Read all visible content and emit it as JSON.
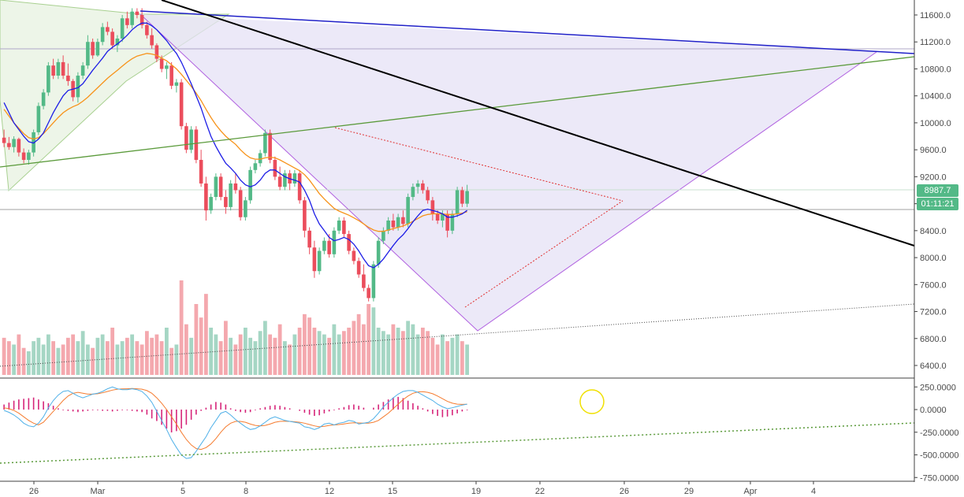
{
  "colors": {
    "up": "#26a69a",
    "up_fill": "#53b987",
    "down": "#ef5350",
    "down_fill": "#eb4d5c",
    "ma_fast": "#1e1ee6",
    "ma_slow": "#f7931a",
    "vol_up": "#a5d6c4",
    "vol_down": "#f4a8ae",
    "macd_line": "#4fb0e8",
    "signal_line": "#f57c30",
    "hist": "#d6267a",
    "triangle_fill": "#e6e1f6",
    "triangle_edge": "#b060e0",
    "green_trend": "#5a9a3a",
    "black_trend": "#000000",
    "blue_trend": "#2020c8",
    "red_dotted": "#e03030",
    "circle": "#f0e000",
    "badge_price": "#53b987",
    "badge_time": "#53b987"
  },
  "price_axis": {
    "ticks": [
      "11600.0",
      "11200.0",
      "10800.0",
      "10400.0",
      "10000.0",
      "9600.0",
      "9200.0",
      "8800.0",
      "8400.0",
      "8000.0",
      "7600.0",
      "7200.0",
      "6800.0",
      "6400.0"
    ]
  },
  "macd_axis": {
    "ticks": [
      "250.0000",
      "0.0000",
      "-250.0000",
      "-500.0000",
      "-750.0000"
    ]
  },
  "date_axis": {
    "labels": [
      "26",
      "Mar",
      "5",
      "8",
      "12",
      "15",
      "19",
      "22",
      "26",
      "29",
      "Apr",
      "4"
    ]
  },
  "current_price": "8987.7",
  "countdown": "01:11:21",
  "chart_data": {
    "type": "candlestick",
    "price_range": [
      6250,
      11850
    ],
    "macd_range": [
      -800,
      300
    ],
    "candles_ohlc": [
      [
        9780,
        9900,
        9640,
        9700
      ],
      [
        9700,
        9790,
        9600,
        9640
      ],
      [
        9640,
        9800,
        9560,
        9760
      ],
      [
        9760,
        9780,
        9500,
        9560
      ],
      [
        9560,
        9620,
        9400,
        9450
      ],
      [
        9450,
        9600,
        9380,
        9560
      ],
      [
        9560,
        9900,
        9500,
        9860
      ],
      [
        9860,
        10300,
        9820,
        10250
      ],
      [
        10250,
        10500,
        10200,
        10450
      ],
      [
        10450,
        10900,
        10400,
        10850
      ],
      [
        10850,
        10950,
        10650,
        10700
      ],
      [
        10700,
        10950,
        10650,
        10900
      ],
      [
        10900,
        11000,
        10650,
        10700
      ],
      [
        10700,
        10880,
        10550,
        10620
      ],
      [
        10620,
        10650,
        10320,
        10380
      ],
      [
        10380,
        10750,
        10300,
        10700
      ],
      [
        10700,
        10900,
        10650,
        10850
      ],
      [
        10850,
        11300,
        10800,
        11200
      ],
      [
        11200,
        11250,
        10950,
        11000
      ],
      [
        11000,
        11250,
        10980,
        11200
      ],
      [
        11200,
        11480,
        11150,
        11420
      ],
      [
        11420,
        11500,
        11300,
        11350
      ],
      [
        11350,
        11400,
        11100,
        11150
      ],
      [
        11150,
        11300,
        11050,
        11250
      ],
      [
        11250,
        11600,
        11200,
        11550
      ],
      [
        11550,
        11650,
        11400,
        11450
      ],
      [
        11450,
        11700,
        11400,
        11650
      ],
      [
        11650,
        11700,
        11550,
        11600
      ],
      [
        11600,
        11700,
        11400,
        11450
      ],
      [
        11450,
        11500,
        11250,
        11300
      ],
      [
        11300,
        11400,
        11100,
        11150
      ],
      [
        11150,
        11180,
        10900,
        10950
      ],
      [
        10950,
        11000,
        10750,
        10800
      ],
      [
        10800,
        10900,
        10650,
        10850
      ],
      [
        10850,
        10900,
        10500,
        10550
      ],
      [
        10550,
        10650,
        10450,
        10600
      ],
      [
        10600,
        10650,
        9900,
        9950
      ],
      [
        9950,
        10000,
        9550,
        9600
      ],
      [
        9600,
        9950,
        9550,
        9900
      ],
      [
        9900,
        9950,
        9400,
        9450
      ],
      [
        9450,
        9600,
        9050,
        9100
      ],
      [
        9100,
        9200,
        8550,
        8700
      ],
      [
        8700,
        8950,
        8650,
        8900
      ],
      [
        8900,
        9250,
        8850,
        9200
      ],
      [
        9200,
        9250,
        8850,
        8900
      ],
      [
        8900,
        9000,
        8650,
        8750
      ],
      [
        8750,
        9150,
        8700,
        9100
      ],
      [
        9100,
        9250,
        8950,
        9000
      ],
      [
        9000,
        9050,
        8550,
        8600
      ],
      [
        8600,
        8900,
        8550,
        8850
      ],
      [
        8850,
        9350,
        8800,
        9300
      ],
      [
        9300,
        9450,
        9250,
        9400
      ],
      [
        9400,
        9600,
        9350,
        9550
      ],
      [
        9550,
        9900,
        9500,
        9850
      ],
      [
        9850,
        9900,
        9400,
        9450
      ],
      [
        9450,
        9500,
        9150,
        9200
      ],
      [
        9200,
        9350,
        9000,
        9050
      ],
      [
        9050,
        9300,
        9000,
        9250
      ],
      [
        9250,
        9300,
        9000,
        9100
      ],
      [
        9100,
        9300,
        9050,
        9250
      ],
      [
        9250,
        9300,
        8800,
        8850
      ],
      [
        8850,
        8900,
        8300,
        8400
      ],
      [
        8400,
        8450,
        8050,
        8150
      ],
      [
        8150,
        8250,
        7700,
        7800
      ],
      [
        7800,
        8150,
        7750,
        8100
      ],
      [
        8100,
        8300,
        8050,
        8250
      ],
      [
        8250,
        8350,
        8000,
        8050
      ],
      [
        8050,
        8450,
        8000,
        8400
      ],
      [
        8400,
        8600,
        8350,
        8550
      ],
      [
        8550,
        8600,
        8300,
        8350
      ],
      [
        8350,
        8400,
        8050,
        8100
      ],
      [
        8100,
        8150,
        7900,
        7950
      ],
      [
        7950,
        8000,
        7700,
        7750
      ],
      [
        7750,
        7900,
        7500,
        7550
      ],
      [
        7550,
        7600,
        7350,
        7400
      ],
      [
        7400,
        7950,
        7350,
        7900
      ],
      [
        7900,
        8300,
        7850,
        8250
      ],
      [
        8250,
        8450,
        8200,
        8400
      ],
      [
        8400,
        8600,
        8350,
        8550
      ],
      [
        8550,
        8650,
        8400,
        8450
      ],
      [
        8450,
        8650,
        8400,
        8600
      ],
      [
        8600,
        8700,
        8450,
        8500
      ],
      [
        8500,
        8950,
        8450,
        8900
      ],
      [
        8900,
        9100,
        8850,
        9050
      ],
      [
        9050,
        9150,
        8950,
        9100
      ],
      [
        9100,
        9150,
        8950,
        9000
      ],
      [
        9000,
        9050,
        8800,
        8850
      ],
      [
        8850,
        8900,
        8550,
        8650
      ],
      [
        8650,
        8700,
        8500,
        8550
      ],
      [
        8550,
        8700,
        8450,
        8650
      ],
      [
        8650,
        8700,
        8300,
        8400
      ],
      [
        8400,
        8700,
        8350,
        8650
      ],
      [
        8650,
        9050,
        8600,
        9000
      ],
      [
        9000,
        9050,
        8750,
        8800
      ],
      [
        8800,
        9080,
        8750,
        8988
      ]
    ],
    "ma_fast": [
      10300,
      10150,
      10000,
      9900,
      9800,
      9720,
      9700,
      9760,
      9850,
      10000,
      10150,
      10280,
      10400,
      10480,
      10500,
      10520,
      10580,
      10680,
      10780,
      10870,
      10960,
      11060,
      11120,
      11170,
      11230,
      11300,
      11380,
      11440,
      11480,
      11480,
      11440,
      11380,
      11300,
      11220,
      11120,
      11030,
      10900,
      10740,
      10580,
      10400,
      10220,
      10000,
      9800,
      9650,
      9520,
      9400,
      9330,
      9250,
      9150,
      9080,
      9050,
      9080,
      9150,
      9250,
      9300,
      9300,
      9250,
      9200,
      9170,
      9150,
      9120,
      9000,
      8850,
      8650,
      8500,
      8400,
      8300,
      8250,
      8270,
      8300,
      8270,
      8200,
      8100,
      7980,
      7880,
      7850,
      7900,
      7980,
      8080,
      8180,
      8270,
      8340,
      8430,
      8530,
      8620,
      8700,
      8720,
      8700,
      8680,
      8650,
      8600,
      8600,
      8620,
      8650,
      8700
    ],
    "ma_slow": [
      10200,
      10100,
      10000,
      9920,
      9840,
      9780,
      9760,
      9780,
      9840,
      9920,
      10000,
      10080,
      10150,
      10200,
      10240,
      10270,
      10320,
      10380,
      10450,
      10520,
      10590,
      10660,
      10720,
      10780,
      10840,
      10900,
      10950,
      10990,
      11010,
      11030,
      11020,
      11000,
      10960,
      10920,
      10860,
      10800,
      10720,
      10630,
      10540,
      10440,
      10330,
      10200,
      10080,
      9970,
      9880,
      9800,
      9740,
      9680,
      9600,
      9530,
      9480,
      9460,
      9460,
      9480,
      9490,
      9480,
      9450,
      9410,
      9370,
      9330,
      9290,
      9230,
      9150,
      9050,
      8950,
      8870,
      8800,
      8730,
      8690,
      8660,
      8630,
      8590,
      8550,
      8500,
      8450,
      8410,
      8390,
      8390,
      8410,
      8430,
      8450,
      8470,
      8500,
      8540,
      8580,
      8620,
      8640,
      8650,
      8650,
      8650,
      8640,
      8640,
      8650,
      8660,
      8680
    ],
    "volumes": [
      55,
      50,
      45,
      60,
      40,
      35,
      50,
      55,
      45,
      60,
      50,
      40,
      45,
      55,
      60,
      50,
      65,
      45,
      40,
      55,
      60,
      50,
      70,
      45,
      50,
      55,
      60,
      50,
      45,
      65,
      55,
      60,
      50,
      70,
      40,
      45,
      140,
      75,
      55,
      105,
      85,
      120,
      70,
      60,
      50,
      80,
      55,
      45,
      60,
      70,
      55,
      50,
      65,
      80,
      60,
      55,
      75,
      50,
      45,
      60,
      70,
      90,
      85,
      70,
      65,
      60,
      55,
      75,
      60,
      65,
      70,
      80,
      90,
      75,
      105,
      100,
      70,
      65,
      60,
      75,
      70,
      65,
      80,
      75,
      60,
      70,
      65,
      55,
      45,
      60,
      50,
      55,
      60,
      50,
      45
    ],
    "macd": [
      -10,
      -30,
      -60,
      -100,
      -150,
      -180,
      -190,
      -150,
      -80,
      20,
      100,
      160,
      200,
      210,
      180,
      150,
      130,
      150,
      170,
      180,
      200,
      230,
      250,
      230,
      220,
      220,
      230,
      220,
      200,
      150,
      80,
      -20,
      -120,
      -220,
      -330,
      -420,
      -500,
      -540,
      -530,
      -460,
      -380,
      -300,
      -200,
      -120,
      -40,
      -20,
      -60,
      -110,
      -150,
      -190,
      -220,
      -210,
      -180,
      -140,
      -100,
      -80,
      -100,
      -120,
      -130,
      -140,
      -150,
      -190,
      -200,
      -220,
      -200,
      -160,
      -150,
      -170,
      -150,
      -140,
      -120,
      -130,
      -160,
      -150,
      -140,
      -100,
      -40,
      30,
      80,
      130,
      170,
      200,
      210,
      210,
      190,
      160,
      130,
      100,
      60,
      30,
      10,
      20,
      35,
      50,
      60
    ],
    "signal": [
      20,
      10,
      -10,
      -40,
      -80,
      -120,
      -150,
      -170,
      -140,
      -80,
      -20,
      40,
      100,
      150,
      180,
      190,
      180,
      170,
      170,
      175,
      185,
      200,
      215,
      225,
      228,
      230,
      232,
      230,
      225,
      210,
      180,
      130,
      70,
      0,
      -80,
      -160,
      -250,
      -330,
      -390,
      -430,
      -440,
      -420,
      -380,
      -320,
      -250,
      -190,
      -150,
      -130,
      -130,
      -140,
      -160,
      -175,
      -180,
      -175,
      -160,
      -140,
      -130,
      -128,
      -130,
      -135,
      -140,
      -150,
      -165,
      -180,
      -190,
      -185,
      -175,
      -170,
      -165,
      -158,
      -150,
      -145,
      -148,
      -150,
      -150,
      -140,
      -120,
      -80,
      -40,
      10,
      60,
      110,
      150,
      180,
      195,
      198,
      190,
      175,
      150,
      120,
      90,
      70,
      60,
      57,
      58
    ],
    "hist": [
      40,
      55,
      70,
      80,
      85,
      90,
      95,
      80,
      65,
      50,
      30,
      10,
      -5,
      -10,
      -15,
      -20,
      -15,
      -10,
      -5,
      -5,
      -10,
      -10,
      -15,
      -10,
      -5,
      -5,
      -10,
      -15,
      -20,
      -40,
      -70,
      -90,
      -120,
      -150,
      -180,
      -170,
      -150,
      -120,
      -80,
      -40,
      -10,
      15,
      40,
      60,
      55,
      40,
      10,
      -10,
      -20,
      -25,
      -20,
      -5,
      10,
      20,
      30,
      35,
      30,
      20,
      10,
      0,
      -10,
      -25,
      -40,
      -50,
      -45,
      -30,
      -15,
      -5,
      10,
      20,
      35,
      40,
      30,
      15,
      0,
      15,
      40,
      60,
      80,
      95,
      100,
      90,
      70,
      50,
      30,
      10,
      -15,
      -35,
      -50,
      -60,
      -55,
      -45,
      -30,
      -15,
      -5
    ]
  }
}
